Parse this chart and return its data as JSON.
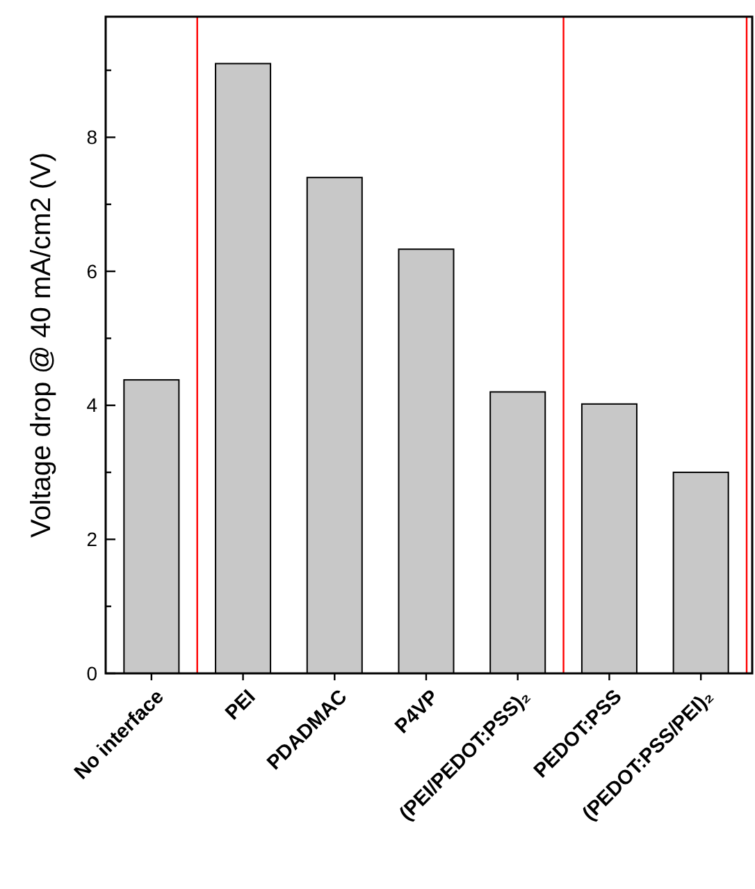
{
  "chart_data": {
    "type": "bar",
    "ylabel": "Voltage drop @ 40 mA/cm2 (V)",
    "categories": [
      "No interface",
      "PEI",
      "PDADMAC",
      "P4VP",
      "(PEI/PEDOT:PSS)₂",
      "PEDOT:PSS",
      "(PEDOT:PSS/PEI)₂"
    ],
    "values": [
      4.38,
      9.1,
      7.4,
      6.33,
      4.2,
      4.02,
      3.0
    ],
    "color": "#c8c8c8",
    "ylim": [
      0,
      9.8
    ],
    "yticks": [
      0,
      {
        "value": 1,
        "label": null
      },
      2,
      {
        "value": 3,
        "label": null
      },
      4,
      {
        "value": 5,
        "label": null
      },
      6,
      {
        "value": 7,
        "label": null
      },
      8,
      {
        "value": 9,
        "label": null
      }
    ],
    "grid": false
  }
}
